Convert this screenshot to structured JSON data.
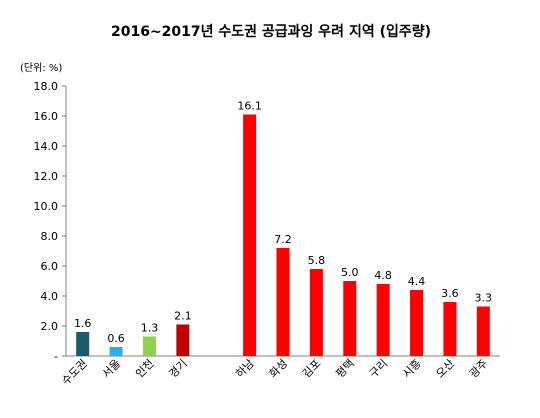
{
  "chart_data": {
    "type": "bar",
    "title": "2016~2017년 수도권 공급과잉 우려 지역 (입주량)",
    "unit_label": "(단위: %)",
    "categories": [
      "수도권",
      "서울",
      "인천",
      "경기",
      "",
      "하남",
      "화성",
      "김포",
      "평택",
      "구리",
      "시흥",
      "오산",
      "광주"
    ],
    "values": [
      1.6,
      0.6,
      1.3,
      2.1,
      null,
      16.1,
      7.2,
      5.8,
      5.0,
      4.8,
      4.4,
      3.6,
      3.3
    ],
    "value_labels": [
      "1.6",
      "0.6",
      "1.3",
      "2.1",
      "",
      "16.1",
      "7.2",
      "5.8",
      "5.0",
      "4.8",
      "4.4",
      "3.6",
      "3.3"
    ],
    "colors": [
      "#1f5a6b",
      "#27b2e6",
      "#92d050",
      "#c00000",
      "",
      "#ff0000",
      "#ff0000",
      "#ff0000",
      "#ff0000",
      "#ff0000",
      "#ff0000",
      "#ff0000",
      "#ff0000"
    ],
    "ylim": [
      0,
      18
    ],
    "yticks": [
      "-",
      "2.0",
      "4.0",
      "6.0",
      "8.0",
      "10.0",
      "12.0",
      "14.0",
      "16.0",
      "18.0"
    ],
    "grid": false,
    "legend": "none"
  }
}
